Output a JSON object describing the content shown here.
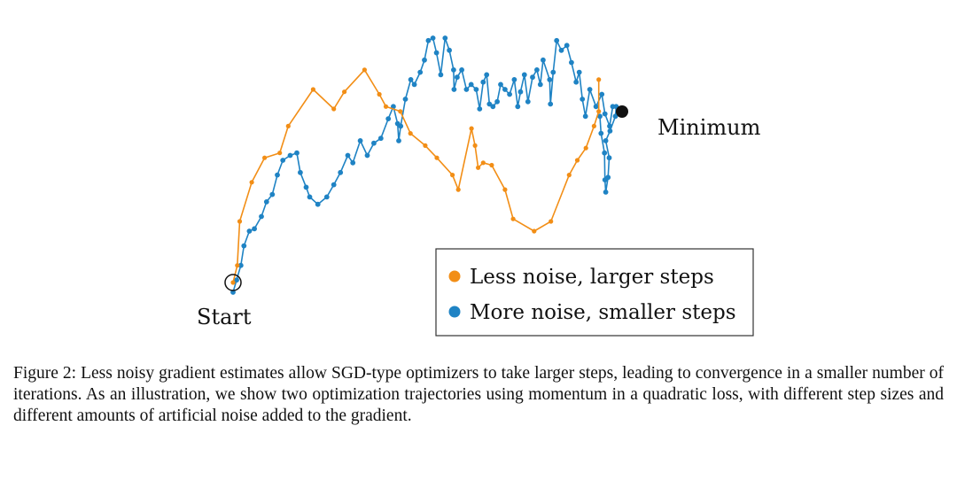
{
  "figure": {
    "start_label": "Start",
    "minimum_label": "Minimum"
  },
  "chart_data": {
    "type": "line",
    "title": "",
    "xlabel": "",
    "ylabel": "",
    "grid": false,
    "axes_visible": false,
    "legend_position": "lower-right",
    "xlim": [
      0,
      1
    ],
    "ylim": [
      0,
      1
    ],
    "start": {
      "x": 0.0,
      "y": 0.0
    },
    "minimum": {
      "x": 0.94,
      "y": 0.7
    },
    "series": [
      {
        "name": "Less noise, larger steps",
        "color": "#f28e16",
        "points": [
          [
            0.0,
            0.0
          ],
          [
            0.011,
            0.07
          ],
          [
            0.017,
            0.25
          ],
          [
            0.048,
            0.41
          ],
          [
            0.081,
            0.51
          ],
          [
            0.12,
            0.53
          ],
          [
            0.142,
            0.64
          ],
          [
            0.206,
            0.79
          ],
          [
            0.259,
            0.71
          ],
          [
            0.286,
            0.78
          ],
          [
            0.338,
            0.87
          ],
          [
            0.376,
            0.77
          ],
          [
            0.393,
            0.72
          ],
          [
            0.43,
            0.7
          ],
          [
            0.456,
            0.61
          ],
          [
            0.494,
            0.56
          ],
          [
            0.524,
            0.51
          ],
          [
            0.564,
            0.44
          ],
          [
            0.579,
            0.38
          ],
          [
            0.613,
            0.63
          ],
          [
            0.622,
            0.56
          ],
          [
            0.63,
            0.47
          ],
          [
            0.643,
            0.49
          ],
          [
            0.665,
            0.48
          ],
          [
            0.699,
            0.38
          ],
          [
            0.72,
            0.26
          ],
          [
            0.774,
            0.21
          ],
          [
            0.817,
            0.25
          ],
          [
            0.864,
            0.44
          ],
          [
            0.885,
            0.5
          ],
          [
            0.907,
            0.55
          ],
          [
            0.928,
            0.64
          ],
          [
            0.94,
            0.7
          ],
          [
            0.94,
            0.83
          ]
        ]
      },
      {
        "name": "More noise, smaller steps",
        "color": "#1f83c4",
        "points": [
          [
            0.0,
            -0.04
          ],
          [
            0.009,
            0.01
          ],
          [
            0.02,
            0.07
          ],
          [
            0.028,
            0.15
          ],
          [
            0.042,
            0.21
          ],
          [
            0.055,
            0.22
          ],
          [
            0.073,
            0.27
          ],
          [
            0.086,
            0.33
          ],
          [
            0.101,
            0.36
          ],
          [
            0.114,
            0.44
          ],
          [
            0.128,
            0.5
          ],
          [
            0.147,
            0.52
          ],
          [
            0.164,
            0.53
          ],
          [
            0.173,
            0.45
          ],
          [
            0.188,
            0.39
          ],
          [
            0.197,
            0.35
          ],
          [
            0.218,
            0.32
          ],
          [
            0.241,
            0.35
          ],
          [
            0.259,
            0.4
          ],
          [
            0.276,
            0.45
          ],
          [
            0.295,
            0.52
          ],
          [
            0.308,
            0.49
          ],
          [
            0.327,
            0.58
          ],
          [
            0.345,
            0.52
          ],
          [
            0.362,
            0.57
          ],
          [
            0.38,
            0.59
          ],
          [
            0.399,
            0.67
          ],
          [
            0.412,
            0.72
          ],
          [
            0.423,
            0.65
          ],
          [
            0.426,
            0.58
          ],
          [
            0.431,
            0.64
          ],
          [
            0.443,
            0.75
          ],
          [
            0.457,
            0.83
          ],
          [
            0.466,
            0.81
          ],
          [
            0.481,
            0.86
          ],
          [
            0.492,
            0.91
          ],
          [
            0.502,
            0.99
          ],
          [
            0.514,
            1.0
          ],
          [
            0.523,
            0.94
          ],
          [
            0.534,
            0.85
          ],
          [
            0.545,
            1.0
          ],
          [
            0.556,
            0.95
          ],
          [
            0.567,
            0.87
          ],
          [
            0.568,
            0.79
          ],
          [
            0.576,
            0.84
          ],
          [
            0.588,
            0.87
          ],
          [
            0.6,
            0.79
          ],
          [
            0.612,
            0.81
          ],
          [
            0.625,
            0.79
          ],
          [
            0.634,
            0.71
          ],
          [
            0.643,
            0.82
          ],
          [
            0.652,
            0.85
          ],
          [
            0.659,
            0.73
          ],
          [
            0.668,
            0.72
          ],
          [
            0.679,
            0.74
          ],
          [
            0.688,
            0.81
          ],
          [
            0.699,
            0.79
          ],
          [
            0.711,
            0.77
          ],
          [
            0.723,
            0.83
          ],
          [
            0.732,
            0.72
          ],
          [
            0.739,
            0.78
          ],
          [
            0.749,
            0.85
          ],
          [
            0.758,
            0.74
          ],
          [
            0.77,
            0.84
          ],
          [
            0.781,
            0.87
          ],
          [
            0.79,
            0.81
          ],
          [
            0.797,
            0.91
          ],
          [
            0.814,
            0.83
          ],
          [
            0.816,
            0.73
          ],
          [
            0.823,
            0.86
          ],
          [
            0.832,
            0.99
          ],
          [
            0.844,
            0.95
          ],
          [
            0.858,
            0.97
          ],
          [
            0.87,
            0.9
          ],
          [
            0.882,
            0.82
          ],
          [
            0.89,
            0.86
          ],
          [
            0.898,
            0.75
          ],
          [
            0.906,
            0.68
          ],
          [
            0.917,
            0.79
          ],
          [
            0.933,
            0.72
          ],
          [
            0.948,
            0.77
          ],
          [
            0.956,
            0.69
          ],
          [
            0.968,
            0.64
          ],
          [
            0.976,
            0.72
          ],
          [
            0.985,
            0.72
          ],
          [
            0.983,
            0.68
          ],
          [
            0.969,
            0.62
          ],
          [
            0.958,
            0.58
          ],
          [
            0.967,
            0.51
          ],
          [
            0.964,
            0.43
          ],
          [
            0.958,
            0.37
          ],
          [
            0.956,
            0.42
          ],
          [
            0.955,
            0.53
          ],
          [
            0.946,
            0.61
          ],
          [
            0.943,
            0.68
          ]
        ]
      }
    ]
  },
  "caption": {
    "text": "Figure 2: Less noisy gradient estimates allow SGD-type optimizers to take larger steps, leading to conver­gence in a smaller number of iterations.  As an illustration, we show two optimization trajectories using momentum in a quadratic loss, with different step sizes and different amounts of artificial noise added to the gradient."
  }
}
